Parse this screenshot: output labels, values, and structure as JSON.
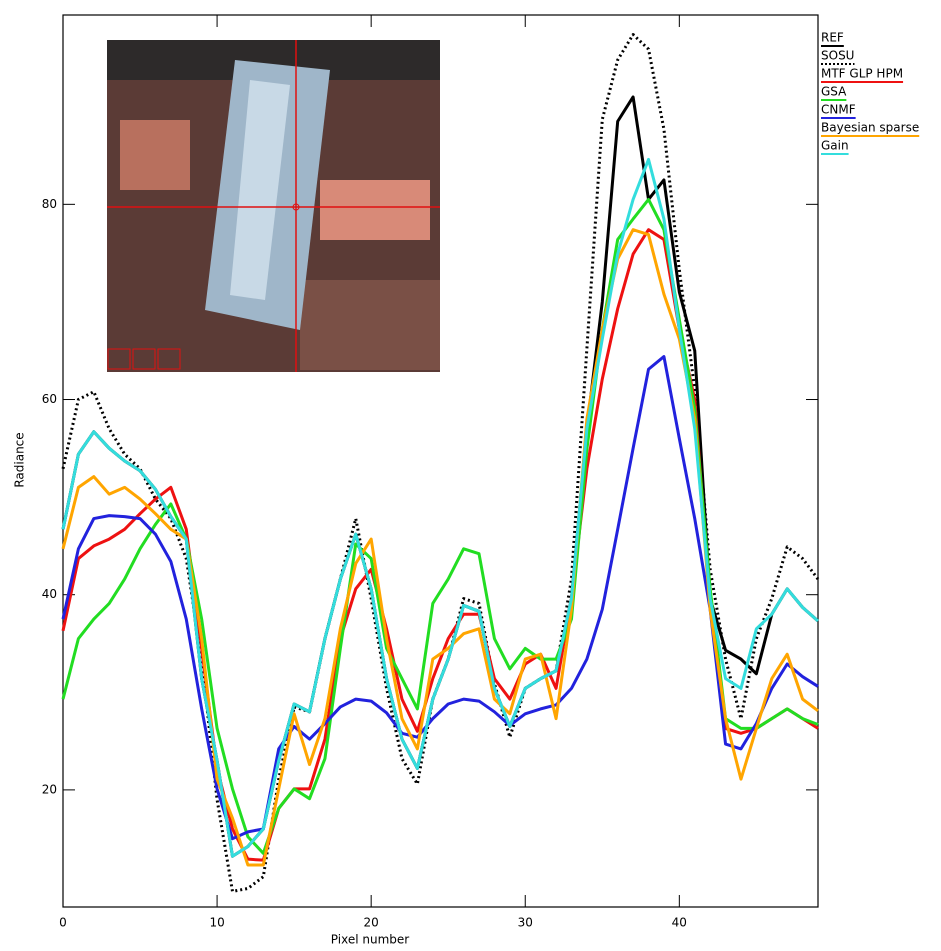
{
  "chart_data": {
    "type": "line",
    "x_label": "Pixel number",
    "y_label": "Radiance",
    "x": [
      0,
      1,
      2,
      3,
      4,
      5,
      6,
      7,
      8,
      9,
      10,
      11,
      12,
      13,
      14,
      15,
      16,
      17,
      18,
      19,
      20,
      21,
      22,
      23,
      24,
      25,
      26,
      27,
      28,
      29,
      30,
      31,
      32,
      33,
      34,
      35,
      36,
      37,
      38,
      39,
      40,
      41,
      42,
      43,
      44,
      45,
      46,
      47,
      48,
      49
    ],
    "xlim": [
      0,
      49
    ],
    "xticks": [
      0,
      10,
      20,
      30,
      40
    ],
    "ylim": [
      8,
      99.4
    ],
    "yticks": [
      20,
      40,
      60,
      80
    ],
    "legend": "upper right",
    "series": [
      {
        "name": "REF",
        "color": "#000000",
        "style": "solid",
        "values": [
          46.7,
          54.4,
          56.7,
          55,
          53.7,
          52.7,
          50.8,
          48,
          45.7,
          31.4,
          23,
          13.2,
          14.2,
          16,
          23,
          28.8,
          28,
          35.5,
          41.6,
          46.2,
          40.6,
          31.4,
          25.2,
          22.2,
          29.3,
          33.4,
          38.9,
          38.3,
          30.4,
          26.5,
          30.4,
          31.4,
          32.2,
          39.6,
          57,
          70,
          88.5,
          91,
          80.5,
          82.5,
          71,
          65,
          39.6,
          34.3,
          33.4,
          31.9,
          38,
          40.6,
          38.7,
          37.3
        ]
      },
      {
        "name": "SOSU",
        "color": "#000000",
        "style": "dotted",
        "values": [
          52.9,
          60,
          60.8,
          57,
          54.4,
          52.9,
          49.8,
          47.8,
          43.7,
          33.4,
          19,
          9.6,
          9.9,
          11.1,
          21.1,
          28.5,
          28,
          35.5,
          41.6,
          47.8,
          39.6,
          30.4,
          23.2,
          20.6,
          29.3,
          33.4,
          39.6,
          39.1,
          30.9,
          25.4,
          30.4,
          31.4,
          32.2,
          41.6,
          65.2,
          88.7,
          94.8,
          97.4,
          95.9,
          87.7,
          73.3,
          61,
          42.6,
          33.4,
          27.3,
          35.5,
          39.6,
          44.9,
          43.7,
          41.6
        ]
      },
      {
        "name": "MTF GLP HPM",
        "color": "#ee1111",
        "style": "solid",
        "values": [
          36.3,
          43.7,
          45,
          45.7,
          46.7,
          48.3,
          49.8,
          51,
          46.7,
          34.5,
          22.2,
          16,
          12.9,
          12.8,
          18.1,
          20.1,
          20.1,
          25.2,
          35.5,
          40.6,
          42.6,
          36.5,
          29.3,
          26,
          31.4,
          35.5,
          38,
          38,
          31.4,
          29.3,
          32.9,
          33.9,
          30.4,
          39.6,
          52.9,
          62.1,
          69.3,
          74.9,
          77.4,
          76.4,
          67.2,
          60,
          39.6,
          26.3,
          25.8,
          26.3,
          27.3,
          28.3,
          27.3,
          26.3
        ]
      },
      {
        "name": "GSA",
        "color": "#22dd22",
        "style": "solid",
        "values": [
          29.3,
          35.5,
          37.5,
          39.1,
          41.6,
          44.7,
          47.2,
          49.3,
          45.7,
          37.5,
          26.3,
          20.1,
          15.2,
          13.5,
          18.1,
          20.1,
          19.1,
          23.2,
          34.5,
          45.2,
          43.7,
          34.5,
          31.4,
          28.3,
          39.1,
          41.6,
          44.7,
          44.2,
          35.5,
          32.4,
          34.5,
          33.4,
          33.4,
          37.5,
          54.9,
          67.2,
          76.4,
          78.5,
          80.5,
          77.4,
          68.2,
          59,
          40.6,
          27.3,
          26.3,
          26.3,
          27.3,
          28.3,
          27.3,
          26.7
        ]
      },
      {
        "name": "CNMF",
        "color": "#2222dd",
        "style": "solid",
        "values": [
          37.5,
          44.7,
          47.8,
          48.1,
          48,
          47.8,
          46.2,
          43.4,
          37.5,
          28.3,
          20.1,
          15,
          15.7,
          16,
          24.2,
          26.5,
          25.2,
          26.8,
          28.5,
          29.3,
          29.1,
          27.9,
          25.8,
          25.4,
          27.3,
          28.8,
          29.3,
          29.1,
          28,
          26.6,
          27.8,
          28.3,
          28.7,
          30.4,
          33.4,
          38.5,
          46.7,
          55,
          63.1,
          64.4,
          56,
          47.8,
          38.5,
          24.7,
          24.2,
          26.8,
          30.4,
          32.9,
          31.6,
          30.6
        ]
      },
      {
        "name": "Bayesian sparse",
        "color": "#ffa500",
        "style": "solid",
        "values": [
          44.7,
          51,
          52.1,
          50.3,
          51,
          49.8,
          48.3,
          46.7,
          45.7,
          35.5,
          21.1,
          17.1,
          12.3,
          12.3,
          20.1,
          27.8,
          22.6,
          27.3,
          36.5,
          43.2,
          45.7,
          35.5,
          27.3,
          24.2,
          33.4,
          34.5,
          36,
          36.5,
          29.3,
          27.8,
          33.4,
          33.9,
          27.3,
          38.5,
          58,
          67.2,
          74.4,
          77.4,
          76.9,
          70.8,
          66.2,
          58,
          38.5,
          27.3,
          21.1,
          26.3,
          31.4,
          33.9,
          29.3,
          28.1
        ]
      },
      {
        "name": "Gain",
        "color": "#33dddd",
        "style": "solid",
        "values": [
          46.7,
          54.4,
          56.7,
          55,
          53.7,
          52.7,
          50.8,
          48,
          45.7,
          31.4,
          23,
          13.2,
          14.2,
          16,
          23,
          28.8,
          28,
          35.5,
          41.6,
          46.2,
          40.6,
          31.4,
          25.2,
          22.2,
          29.3,
          33.4,
          38.9,
          38.3,
          30.4,
          26.5,
          30.4,
          31.4,
          32.2,
          39.6,
          57,
          66.2,
          74.9,
          80.5,
          84.6,
          78.5,
          67.2,
          57,
          39.6,
          31.4,
          30.4,
          36.5,
          38,
          40.6,
          38.7,
          37.3
        ]
      }
    ]
  }
}
